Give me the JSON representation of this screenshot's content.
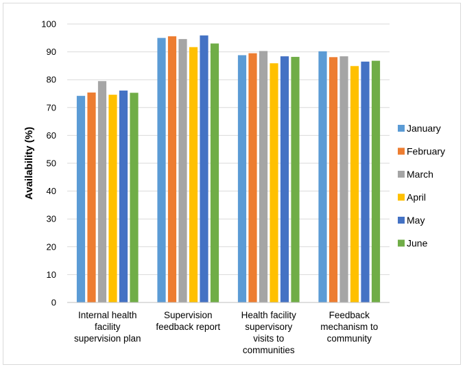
{
  "chart_data": {
    "type": "bar",
    "ylabel": "Availability (%)",
    "xlabel": "",
    "ylim": [
      0,
      100
    ],
    "yticks": [
      0,
      10,
      20,
      30,
      40,
      50,
      60,
      70,
      80,
      90,
      100
    ],
    "grid": true,
    "legend_position": "right",
    "categories": [
      [
        "Internal health",
        "facility",
        "supervision plan"
      ],
      [
        "Supervision",
        "feedback report"
      ],
      [
        "Health facility",
        "supervisory",
        "visits to",
        "communities"
      ],
      [
        "Feedback",
        "mechanism to",
        "community"
      ]
    ],
    "series": [
      {
        "name": "January",
        "color": "#5B9BD5",
        "values": [
          74.2,
          95.0,
          88.8,
          90.2
        ]
      },
      {
        "name": "February",
        "color": "#ED7D31",
        "values": [
          75.4,
          95.6,
          89.5,
          88.1
        ]
      },
      {
        "name": "March",
        "color": "#A5A5A5",
        "values": [
          79.5,
          94.6,
          90.3,
          88.4
        ]
      },
      {
        "name": "April",
        "color": "#FFC000",
        "values": [
          74.6,
          91.7,
          85.9,
          84.9
        ]
      },
      {
        "name": "May",
        "color": "#4472C4",
        "values": [
          76.1,
          95.9,
          88.4,
          86.5
        ]
      },
      {
        "name": "June",
        "color": "#70AD47",
        "values": [
          75.3,
          93.0,
          88.2,
          86.8
        ]
      }
    ]
  }
}
